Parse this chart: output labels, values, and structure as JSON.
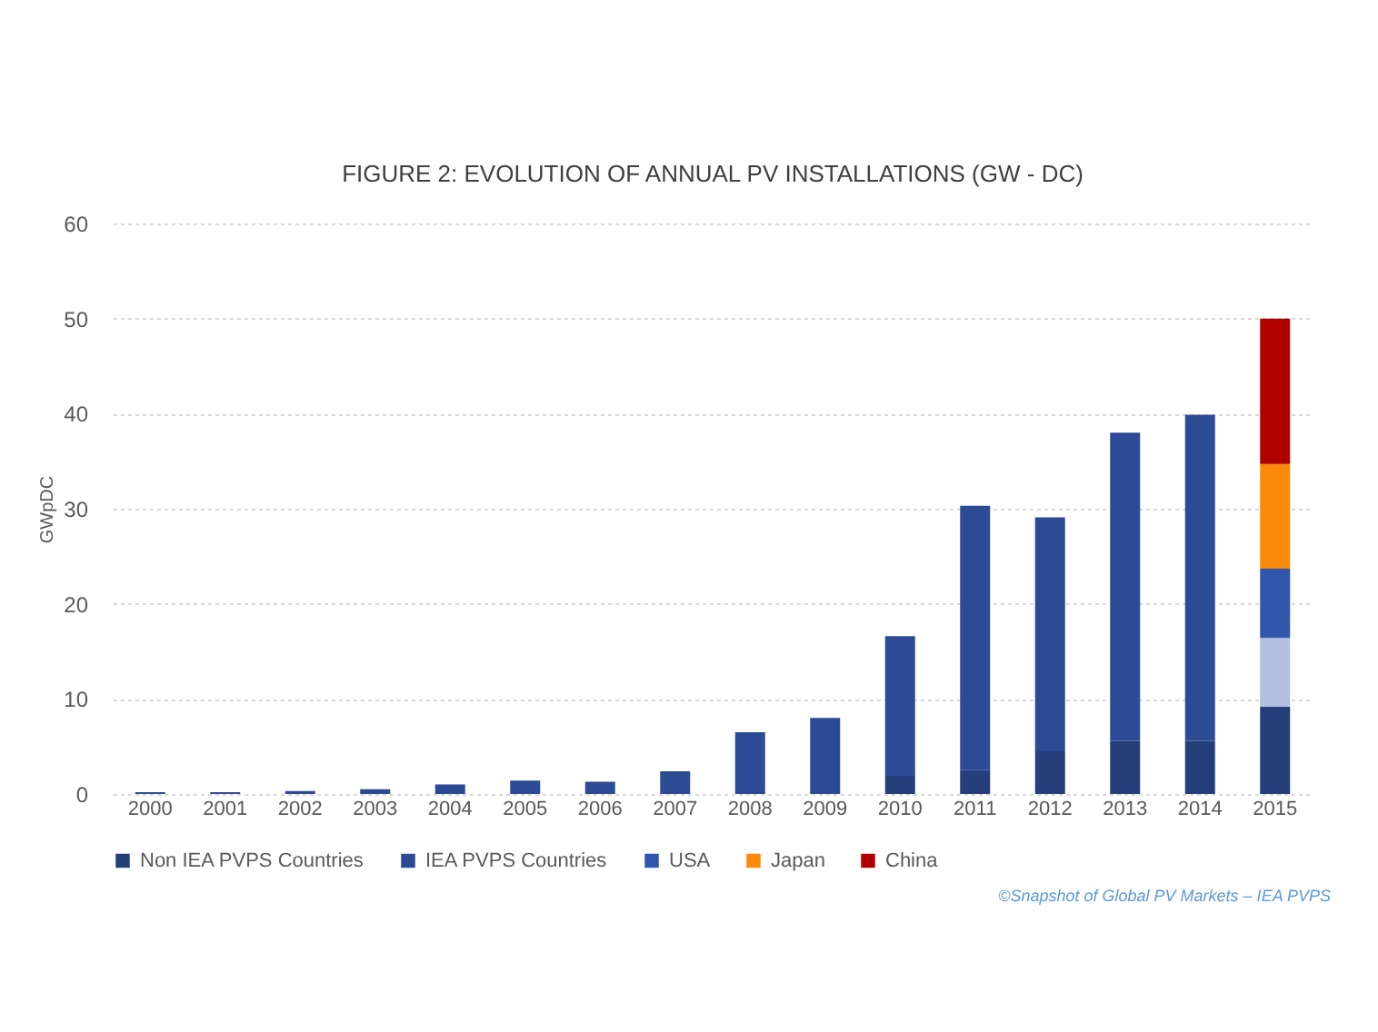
{
  "chart_data": {
    "type": "bar",
    "stacked": true,
    "title": "FIGURE 2: EVOLUTION OF ANNUAL PV INSTALLATIONS (GW - DC)",
    "ylabel": "GWpDC",
    "categories": [
      "2000",
      "2001",
      "2002",
      "2003",
      "2004",
      "2005",
      "2006",
      "2007",
      "2008",
      "2009",
      "2010",
      "2011",
      "2012",
      "2013",
      "2014",
      "2015"
    ],
    "series": [
      {
        "name": "Non IEA PVPS Countries",
        "color": "#243f7a",
        "values": [
          0,
          0,
          0,
          0,
          0,
          0,
          0,
          0,
          0,
          0,
          1.9,
          2.5,
          4.5,
          5.6,
          5.6,
          9.2
        ]
      },
      {
        "name": "IEA PVPS Countries",
        "color": "#2c4b94",
        "colors": [
          "#2c4b94",
          "#2c4b94",
          "#2c4b94",
          "#2c4b94",
          "#2c4b94",
          "#2c4b94",
          "#2c4b94",
          "#2c4b94",
          "#2c4b94",
          "#2c4b94",
          "#2c4b94",
          "#2c4b94",
          "#2c4b94",
          "#2c4b94",
          "#2c4b94",
          "#b4bedf"
        ],
        "values": [
          0.2,
          0.2,
          0.3,
          0.5,
          1.0,
          1.4,
          1.3,
          2.4,
          6.5,
          8.0,
          14.7,
          27.8,
          24.6,
          32.4,
          34.3,
          7.2
        ]
      },
      {
        "name": "USA",
        "color": "#3057ab",
        "values": [
          null,
          null,
          null,
          null,
          null,
          null,
          null,
          null,
          null,
          null,
          null,
          null,
          null,
          null,
          null,
          7.3
        ]
      },
      {
        "name": "Japan",
        "color": "#fb8a0c",
        "values": [
          null,
          null,
          null,
          null,
          null,
          null,
          null,
          null,
          null,
          null,
          null,
          null,
          null,
          null,
          null,
          11.0
        ]
      },
      {
        "name": "China",
        "color": "#b00000",
        "values": [
          null,
          null,
          null,
          null,
          null,
          null,
          null,
          null,
          null,
          null,
          null,
          null,
          null,
          null,
          null,
          15.3
        ]
      }
    ],
    "ylim": [
      0,
      60
    ],
    "yticks": [
      0,
      10,
      20,
      30,
      40,
      50,
      60
    ],
    "grid": "y",
    "legend": "bottom",
    "annotations": [
      "©Snapshot of Global PV Markets – IEA PVPS"
    ]
  }
}
